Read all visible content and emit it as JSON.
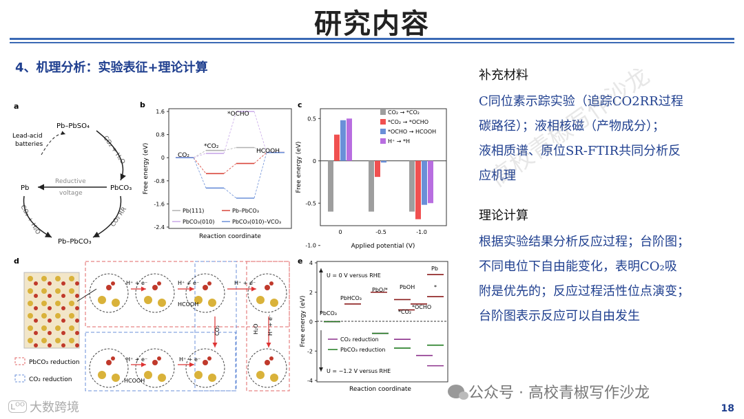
{
  "slide": {
    "title": "研究内容",
    "section_heading": "4、机理分析：实验表征+理论计算",
    "page_number": "18"
  },
  "right_text": {
    "heading1": "补充材料",
    "para1_lines": [
      "C同位素示踪实验（追踪CO2RR过程",
      "碳路径）；液相核磁（产物成分）；",
      "液相质谱、原位SR-FTIR共同分析反",
      "应机理"
    ],
    "heading2": "理论计算",
    "para2_lines": [
      "根据实验结果分析反应过程；台阶图；",
      "不同电位下自由能变化，表明CO₂吸",
      "附是优先的；反应过程活性位点演变；",
      "台阶图表示反应可以自由发生"
    ]
  },
  "watermarks": {
    "diagonal": "高校青椒写作沙龙",
    "wechat": "公众号 · 高校青椒写作沙龙",
    "brand": "大数跨境",
    "brand_icon": "ʟᴼᴼ"
  },
  "panel_a": {
    "label": "a",
    "nodes": {
      "top": "Pb–PbSO₄",
      "left": "Pb",
      "right": "PbCO₃",
      "bottom": "Pb–PbCO₃",
      "battery": "Lead-acid\nbatteries"
    },
    "arrow_labels": {
      "top_right": "CO₂ + H₂O",
      "center": "Reductive\nvoltage",
      "bottom_right": "CO₂ RR",
      "bottom_left": "CO₂ + H₂O"
    }
  },
  "panel_b": {
    "label": "b",
    "ylabel": "Free energy (eV)",
    "xlabel": "Reaction coordinate",
    "yticks": [
      "1.6",
      "0.8",
      "0",
      "-0.8",
      "-1.6",
      "-2.4"
    ],
    "step_labels": [
      "CO₂",
      "*CO₂",
      "*OCHO",
      "HCOOH"
    ],
    "legend": [
      "Pb(111)",
      "Pb–PbCO₃",
      "PbCO₃(010)",
      "PbCO₃(010)–VCO₃"
    ]
  },
  "panel_c": {
    "label": "c",
    "ylabel": "Free energy (eV)",
    "xlabel": "Applied potential (V)",
    "yticks": [
      "0.5",
      "0",
      "-0.5",
      "-1.0"
    ],
    "xticks": [
      "0",
      "-0.5",
      "-1.0"
    ],
    "legend": [
      "CO₂ → *CO₂",
      "*CO₂ → *OCHO",
      "*OCHO → HCOOH",
      "H⁺ → *H"
    ],
    "colors": [
      "#9e9e9e",
      "#f05050",
      "#6a8fd8",
      "#b86ee0"
    ]
  },
  "panel_d": {
    "label": "d",
    "legend": [
      "PbCO₃ reduction",
      "CO₂ reduction"
    ],
    "step_labels": [
      "H⁺ + e⁻",
      "H⁺ + e⁻",
      "HCOOH",
      "H⁺ + e⁻",
      "CO₂",
      "H₂O",
      "H⁺ + e⁻",
      "H⁺ + e⁻",
      "H⁺ + e⁻",
      "HCOOH"
    ]
  },
  "panel_e": {
    "label": "e",
    "ylabel": "Free energy (eV)",
    "xlabel": "Reaction coordinate",
    "yticks": [
      "4",
      "2",
      "0",
      "-2",
      "-4"
    ],
    "annotations": [
      "U = 0 V versus RHE",
      "U = −1.2 V versus RHE"
    ],
    "step_labels": [
      "PbCO₃",
      "PbHCO₃",
      "PbO/*",
      "PbOH",
      "*CO₂",
      "*OCHO",
      "*",
      "Pb"
    ],
    "legend": [
      "CO₂ reduction",
      "PbCO₃ reduction"
    ]
  },
  "chart_data": [
    {
      "type": "line",
      "panel": "b",
      "ylim": [
        -2.4,
        1.6
      ],
      "categories": [
        "CO₂",
        "*CO₂",
        "*OCHO",
        "HCOOH"
      ],
      "series": [
        {
          "name": "Pb(111)",
          "values": [
            0,
            0.25,
            0.35,
            0.18
          ],
          "color": "#b0b0b0"
        },
        {
          "name": "Pb–PbCO₃",
          "values": [
            0,
            -0.55,
            -0.2,
            0.18
          ],
          "color": "#d9453a"
        },
        {
          "name": "PbCO₃(010)",
          "values": [
            0,
            0.15,
            1.6,
            0.18
          ],
          "color": "#c8a8e8"
        },
        {
          "name": "PbCO₃(010)–VCO₃",
          "values": [
            0,
            -1.05,
            -1.4,
            0.18
          ],
          "color": "#6a8fd8"
        }
      ]
    },
    {
      "type": "bar",
      "panel": "c",
      "categories": [
        "0",
        "-0.5",
        "-1.0"
      ],
      "ylim": [
        -0.75,
        0.6
      ],
      "series": [
        {
          "name": "CO₂ → *CO₂",
          "values": [
            -0.6,
            -0.6,
            -0.6
          ]
        },
        {
          "name": "*CO₂ → *OCHO",
          "values": [
            0.31,
            -0.19,
            -0.69
          ]
        },
        {
          "name": "*OCHO → HCOOH",
          "values": [
            0.48,
            -0.02,
            -0.52
          ]
        },
        {
          "name": "H⁺ → *H",
          "values": [
            0.5,
            0.0,
            -0.5
          ]
        }
      ]
    },
    {
      "type": "line",
      "panel": "e",
      "ylim": [
        -4,
        4
      ],
      "series": [
        {
          "name": "U = 0 V CO₂ (dark red)",
          "values": [
            0,
            1.2,
            2.0,
            1.5,
            0.8,
            1.2,
            1.7,
            3.2
          ]
        },
        {
          "name": "CO₂ reduction",
          "values": [
            0,
            -0.8,
            -1.2,
            -2.3,
            -3.0
          ]
        },
        {
          "name": "PbCO₃ reduction",
          "values": [
            0,
            -0.8,
            -1.8,
            -1.6
          ]
        }
      ]
    }
  ]
}
